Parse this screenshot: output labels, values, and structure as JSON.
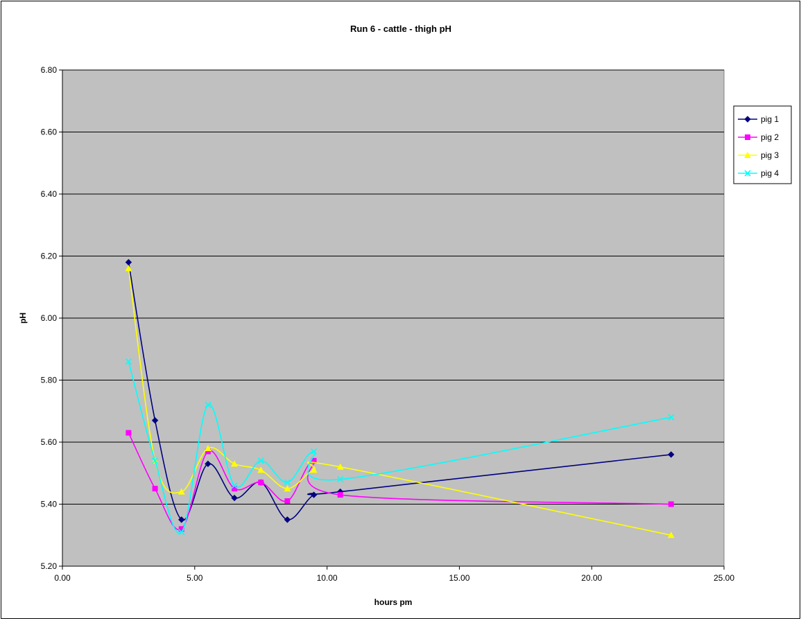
{
  "chart_data": {
    "type": "scatter",
    "title": "Run 6 - cattle - thigh pH",
    "xlabel": "hours pm",
    "ylabel": "pH",
    "xlim": [
      0,
      25
    ],
    "ylim": [
      5.2,
      6.8
    ],
    "x_ticks": [
      0,
      5,
      10,
      15,
      20,
      25
    ],
    "x_tick_labels": [
      "0.00",
      "5.00",
      "10.00",
      "15.00",
      "20.00",
      "25.00"
    ],
    "y_ticks": [
      5.2,
      5.4,
      5.6,
      5.8,
      6.0,
      6.2,
      6.4,
      6.6,
      6.8
    ],
    "y_tick_labels": [
      "5.20",
      "5.40",
      "5.60",
      "5.80",
      "6.00",
      "6.20",
      "6.40",
      "6.60",
      "6.80"
    ],
    "grid": "horizontal",
    "legend_position": "right",
    "plot_background": "#c0c0c0",
    "smoothed_lines": true,
    "series": [
      {
        "name": "pig 1",
        "color": "#000080",
        "marker": "diamond",
        "x": [
          2.5,
          3.5,
          4.5,
          5.5,
          6.5,
          7.5,
          8.5,
          9.5,
          10.5,
          23
        ],
        "y": [
          6.18,
          5.67,
          5.35,
          5.53,
          5.42,
          5.47,
          5.35,
          5.43,
          5.44,
          5.56
        ]
      },
      {
        "name": "pig 2",
        "color": "#ff00ff",
        "marker": "square",
        "x": [
          2.5,
          3.5,
          4.5,
          5.5,
          6.5,
          7.5,
          8.5,
          9.5,
          10.5,
          23
        ],
        "y": [
          5.63,
          5.45,
          5.32,
          5.57,
          5.45,
          5.47,
          5.41,
          5.54,
          5.43,
          5.4
        ]
      },
      {
        "name": "pig 3",
        "color": "#ffff00",
        "marker": "triangle",
        "x": [
          2.5,
          3.5,
          4.5,
          5.5,
          6.5,
          7.5,
          8.5,
          9.5,
          10.5,
          23
        ],
        "y": [
          6.16,
          5.54,
          5.44,
          5.58,
          5.53,
          5.51,
          5.45,
          5.51,
          5.52,
          5.3
        ]
      },
      {
        "name": "pig 4",
        "color": "#00ffff",
        "marker": "x",
        "x": [
          2.5,
          3.5,
          4.5,
          5.5,
          6.5,
          7.5,
          8.5,
          9.5,
          10.5,
          23
        ],
        "y": [
          5.86,
          5.54,
          5.31,
          5.72,
          5.46,
          5.54,
          5.47,
          5.57,
          5.48,
          5.68
        ]
      }
    ]
  }
}
